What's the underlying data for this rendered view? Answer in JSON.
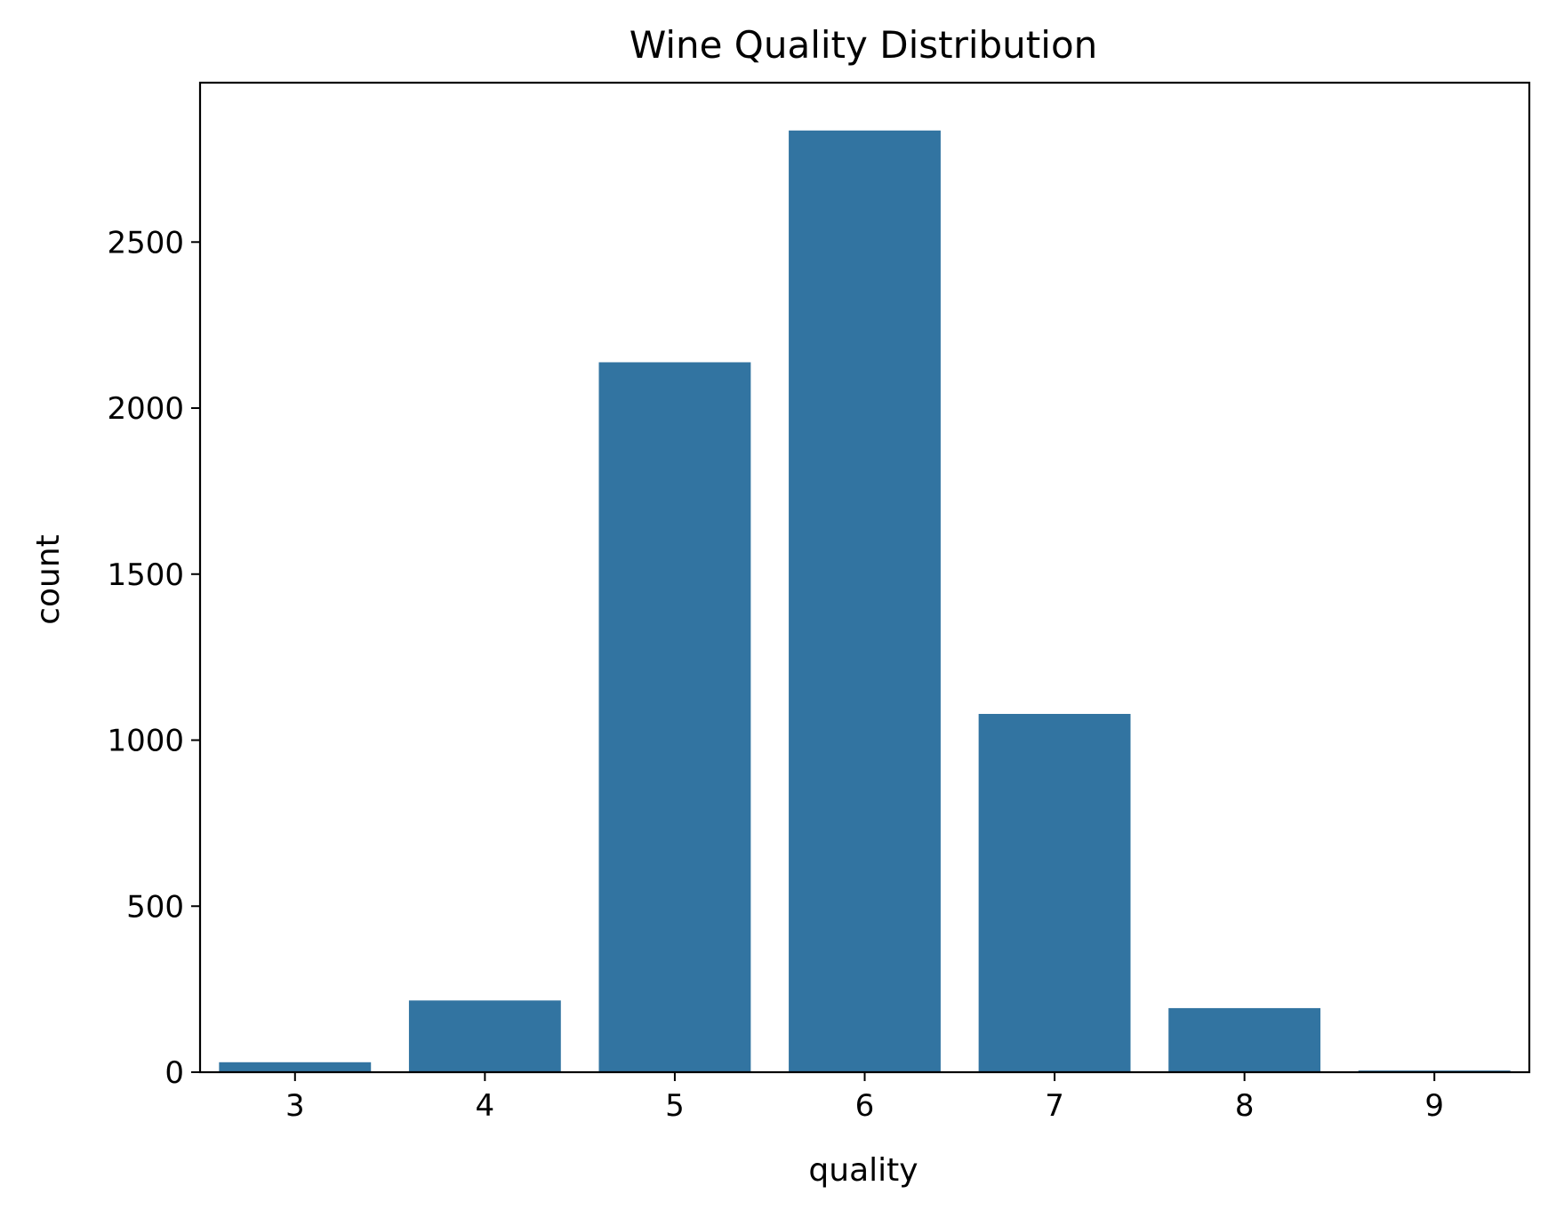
{
  "chart_data": {
    "type": "bar",
    "title": "Wine Quality Distribution",
    "xlabel": "quality",
    "ylabel": "count",
    "categories": [
      "3",
      "4",
      "5",
      "6",
      "7",
      "8",
      "9"
    ],
    "values": [
      30,
      216,
      2138,
      2836,
      1079,
      193,
      5
    ],
    "ylim": [
      0,
      2980
    ],
    "yticks": [
      0,
      500,
      1000,
      1500,
      2000,
      2500
    ],
    "ytick_labels": [
      "0",
      "500",
      "1000",
      "1500",
      "2000",
      "2500"
    ],
    "grid": false,
    "legend": "none",
    "bar_color": "#3274a1"
  }
}
